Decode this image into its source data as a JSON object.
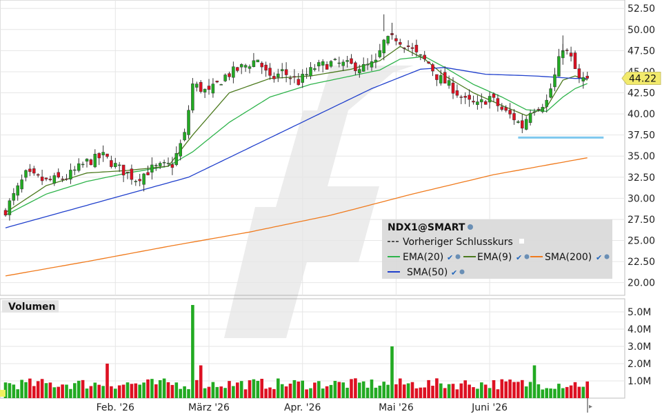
{
  "chart_data": [
    {
      "type": "candlestick",
      "panel": "price",
      "symbol": "NDX1@SMART",
      "last_price_label": "44.22",
      "last_price": 44.22,
      "ylim": [
        18.5,
        53.5
      ],
      "y_ticks": [
        20.0,
        22.5,
        25.0,
        27.5,
        30.0,
        32.5,
        35.0,
        37.5,
        40.0,
        42.5,
        45.0,
        47.5,
        50.0,
        52.5
      ],
      "y_tick_labels": [
        "20.00",
        "22.50",
        "25.00",
        "27.50",
        "30.00",
        "32.50",
        "35.00",
        "37.50",
        "40.00",
        "42.50",
        "45.00",
        "47.50",
        "50.00",
        "52.50"
      ],
      "x_ticks": [
        {
          "label": "Feb. '26",
          "index": 27
        },
        {
          "label": "März '26",
          "index": 50
        },
        {
          "label": "Apr. '26",
          "index": 73
        },
        {
          "label": "Mai '26",
          "index": 96
        },
        {
          "label": "Juni '26",
          "index": 119
        }
      ],
      "close_anchors": [
        [
          0,
          28.6
        ],
        [
          5,
          32.8
        ],
        [
          10,
          32.0
        ],
        [
          15,
          32.5
        ],
        [
          20,
          34.3
        ],
        [
          24,
          35.0
        ],
        [
          28,
          33.5
        ],
        [
          32,
          32.3
        ],
        [
          36,
          33.5
        ],
        [
          41,
          34.0
        ],
        [
          44,
          37.5
        ],
        [
          46,
          43.5
        ],
        [
          50,
          42.5
        ],
        [
          54,
          44.5
        ],
        [
          58,
          45.5
        ],
        [
          62,
          46.5
        ],
        [
          65,
          44.0
        ],
        [
          68,
          45.0
        ],
        [
          72,
          43.8
        ],
        [
          76,
          45.5
        ],
        [
          80,
          46.0
        ],
        [
          84,
          45.8
        ],
        [
          88,
          45.5
        ],
        [
          91,
          46.0
        ],
        [
          93,
          48.5
        ],
        [
          96,
          49.0
        ],
        [
          99,
          48.0
        ],
        [
          101,
          47.0
        ],
        [
          104,
          46.0
        ],
        [
          106,
          44.5
        ],
        [
          110,
          43.0
        ],
        [
          113,
          41.5
        ],
        [
          116,
          41.0
        ],
        [
          119,
          42.0
        ],
        [
          122,
          40.5
        ],
        [
          125,
          39.5
        ],
        [
          127,
          38.5
        ],
        [
          129,
          40.5
        ],
        [
          133,
          41.5
        ],
        [
          135,
          44.5
        ],
        [
          137,
          48.0
        ],
        [
          139,
          46.5
        ],
        [
          141,
          44.0
        ],
        [
          143,
          44.22
        ]
      ],
      "series": [
        {
          "name": "EMA(20)",
          "color": "#2db34a",
          "anchors": [
            [
              0,
              28.0
            ],
            [
              10,
              30.5
            ],
            [
              20,
              32.0
            ],
            [
              30,
              33.0
            ],
            [
              40,
              33.8
            ],
            [
              46,
              35.5
            ],
            [
              55,
              39.0
            ],
            [
              65,
              42.0
            ],
            [
              75,
              43.5
            ],
            [
              85,
              44.5
            ],
            [
              92,
              45.2
            ],
            [
              97,
              46.5
            ],
            [
              103,
              46.8
            ],
            [
              108,
              45.5
            ],
            [
              115,
              43.5
            ],
            [
              122,
              42.0
            ],
            [
              128,
              40.5
            ],
            [
              133,
              40.3
            ],
            [
              137,
              42.0
            ],
            [
              140,
              43.0
            ],
            [
              143,
              43.6
            ]
          ]
        },
        {
          "name": "EMA(9)",
          "color": "#4c7a1e",
          "anchors": [
            [
              0,
              28.3
            ],
            [
              10,
              31.5
            ],
            [
              20,
              33.0
            ],
            [
              30,
              33.3
            ],
            [
              40,
              33.8
            ],
            [
              46,
              37.5
            ],
            [
              55,
              42.5
            ],
            [
              65,
              44.2
            ],
            [
              75,
              44.5
            ],
            [
              85,
              45.3
            ],
            [
              92,
              46.3
            ],
            [
              97,
              48.0
            ],
            [
              103,
              46.5
            ],
            [
              108,
              44.5
            ],
            [
              115,
              42.5
            ],
            [
              122,
              41.0
            ],
            [
              128,
              39.8
            ],
            [
              133,
              40.8
            ],
            [
              137,
              44.0
            ],
            [
              140,
              44.5
            ],
            [
              143,
              44.0
            ]
          ]
        },
        {
          "name": "SMA(200)",
          "color": "#f07a1c",
          "anchors": [
            [
              0,
              20.8
            ],
            [
              20,
              22.5
            ],
            [
              40,
              24.3
            ],
            [
              60,
              26.0
            ],
            [
              80,
              28.0
            ],
            [
              100,
              30.5
            ],
            [
              120,
              32.8
            ],
            [
              143,
              34.8
            ]
          ]
        },
        {
          "name": "SMA(50)",
          "color": "#1f3fcc",
          "anchors": [
            [
              0,
              26.5
            ],
            [
              15,
              28.5
            ],
            [
              30,
              30.5
            ],
            [
              45,
              32.5
            ],
            [
              60,
              36.0
            ],
            [
              75,
              39.5
            ],
            [
              90,
              43.0
            ],
            [
              102,
              45.3
            ],
            [
              108,
              45.5
            ],
            [
              118,
              44.7
            ],
            [
              130,
              44.5
            ],
            [
              140,
              44.2
            ],
            [
              143,
              44.2
            ]
          ]
        }
      ],
      "legend": {
        "title": "NDX1@SMART",
        "items": [
          {
            "label": "Vorheriger Schlusskurs",
            "style": "dashed",
            "color": "#222222"
          },
          {
            "label": "EMA(20)",
            "color": "#2db34a"
          },
          {
            "label": "EMA(9)",
            "color": "#4c7a1e"
          },
          {
            "label": "SMA(200)",
            "color": "#f07a1c"
          },
          {
            "label": "SMA(50)",
            "color": "#1f3fcc"
          }
        ],
        "placement": "bottom-right"
      },
      "support_line": {
        "value": 37.2,
        "from_index": 126,
        "to_index": 147,
        "color": "#7ec8ee"
      },
      "grid": true,
      "up_color": "#22aa22",
      "down_color": "#dd1122"
    },
    {
      "type": "bar",
      "panel": "volume",
      "title": "Volumen",
      "ylim": [
        0,
        5.6
      ],
      "y_ticks": [
        1.0,
        2.0,
        3.0,
        4.0,
        5.0
      ],
      "y_tick_labels": [
        "1.0M",
        "2.0M",
        "3.0M",
        "4.0M",
        "5.0M"
      ],
      "unit": "M",
      "spikes": [
        [
          25,
          2.0
        ],
        [
          46,
          5.4
        ],
        [
          48,
          1.9
        ],
        [
          95,
          3.0
        ],
        [
          130,
          1.9
        ]
      ],
      "grid": true
    }
  ]
}
